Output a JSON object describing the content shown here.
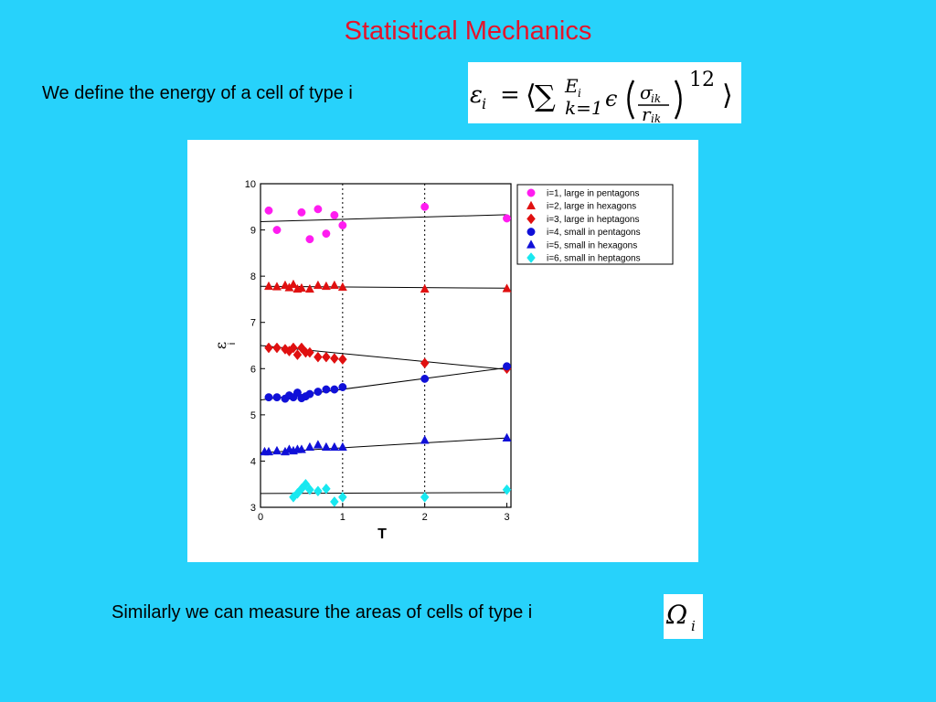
{
  "slide": {
    "title": "Statistical Mechanics",
    "line1": "We define the energy of a cell of type i",
    "line2": "Similarly we can measure the areas of cells of type i"
  },
  "formulas": {
    "energy": {
      "epsilon_i": "ε",
      "sub_i": "i",
      "eq": "=",
      "langle": "⟨",
      "sum": "∑",
      "upper_E": "E",
      "upper_sub": "i",
      "lower": "k=1",
      "epsilon": "ϵ",
      "sigma": "σ",
      "sigma_sub": "ik",
      "r": "r",
      "r_sub": "ik",
      "exponent": "12",
      "rangle": "⟩"
    },
    "area": {
      "symbol": "Ω",
      "sub": "i"
    }
  },
  "colors": {
    "background": "#27d2fb",
    "title": "#e4142a",
    "magenta": "#ff1cf0",
    "red": "#e01010",
    "blue": "#1010d8",
    "cyan": "#18e8f0"
  },
  "chart_data": {
    "type": "scatter",
    "xlabel": "T",
    "ylabel": "ε",
    "ylabel_sub": "i",
    "xlim": [
      0,
      3.05
    ],
    "ylim": [
      3,
      10
    ],
    "xticks": [
      "0",
      "1",
      "2",
      "3"
    ],
    "yticks": [
      "3",
      "4",
      "5",
      "6",
      "7",
      "8",
      "9",
      "10"
    ],
    "grid_x_at": [
      1,
      2
    ],
    "legend_position": "top-right",
    "series": [
      {
        "name": "i=1, large in pentagons",
        "color": "#ff1cf0",
        "marker": "circle",
        "points": [
          [
            0.1,
            9.42
          ],
          [
            0.2,
            9.0
          ],
          [
            0.5,
            9.38
          ],
          [
            0.6,
            8.8
          ],
          [
            0.7,
            9.45
          ],
          [
            0.8,
            8.92
          ],
          [
            0.9,
            9.32
          ],
          [
            1.0,
            9.1
          ],
          [
            2.0,
            9.5
          ],
          [
            3.0,
            9.25
          ]
        ],
        "fit": [
          [
            0.0,
            9.18
          ],
          [
            3.0,
            9.33
          ]
        ]
      },
      {
        "name": "i=2, large in hexagons",
        "color": "#e01010",
        "marker": "triangle",
        "points": [
          [
            0.1,
            7.78
          ],
          [
            0.2,
            7.77
          ],
          [
            0.3,
            7.8
          ],
          [
            0.35,
            7.75
          ],
          [
            0.4,
            7.82
          ],
          [
            0.45,
            7.72
          ],
          [
            0.5,
            7.74
          ],
          [
            0.6,
            7.72
          ],
          [
            0.7,
            7.8
          ],
          [
            0.8,
            7.78
          ],
          [
            0.9,
            7.8
          ],
          [
            1.0,
            7.76
          ],
          [
            2.0,
            7.72
          ],
          [
            3.0,
            7.73
          ]
        ],
        "fit": [
          [
            0.0,
            7.78
          ],
          [
            3.0,
            7.74
          ]
        ]
      },
      {
        "name": "i=3, large in heptagons",
        "color": "#e01010",
        "marker": "diamond",
        "points": [
          [
            0.1,
            6.45
          ],
          [
            0.2,
            6.45
          ],
          [
            0.3,
            6.42
          ],
          [
            0.35,
            6.38
          ],
          [
            0.4,
            6.45
          ],
          [
            0.45,
            6.3
          ],
          [
            0.5,
            6.45
          ],
          [
            0.55,
            6.35
          ],
          [
            0.6,
            6.35
          ],
          [
            0.7,
            6.25
          ],
          [
            0.8,
            6.25
          ],
          [
            0.9,
            6.22
          ],
          [
            1.0,
            6.2
          ],
          [
            2.0,
            6.12
          ],
          [
            3.0,
            6.0
          ]
        ],
        "fit": [
          [
            0.0,
            6.5
          ],
          [
            3.0,
            5.98
          ]
        ]
      },
      {
        "name": "i=4, small in pentagons",
        "color": "#1010d8",
        "marker": "circle",
        "points": [
          [
            0.1,
            5.38
          ],
          [
            0.2,
            5.38
          ],
          [
            0.3,
            5.35
          ],
          [
            0.35,
            5.42
          ],
          [
            0.4,
            5.38
          ],
          [
            0.45,
            5.48
          ],
          [
            0.5,
            5.36
          ],
          [
            0.55,
            5.4
          ],
          [
            0.6,
            5.45
          ],
          [
            0.7,
            5.5
          ],
          [
            0.8,
            5.55
          ],
          [
            0.9,
            5.55
          ],
          [
            1.0,
            5.6
          ],
          [
            2.0,
            5.78
          ],
          [
            3.0,
            6.05
          ]
        ],
        "fit": [
          [
            0.0,
            5.32
          ],
          [
            3.0,
            6.02
          ]
        ]
      },
      {
        "name": "i=5, small in hexagons",
        "color": "#1010d8",
        "marker": "triangle",
        "points": [
          [
            0.05,
            4.2
          ],
          [
            0.1,
            4.2
          ],
          [
            0.2,
            4.22
          ],
          [
            0.3,
            4.2
          ],
          [
            0.35,
            4.25
          ],
          [
            0.4,
            4.22
          ],
          [
            0.45,
            4.25
          ],
          [
            0.5,
            4.25
          ],
          [
            0.6,
            4.3
          ],
          [
            0.7,
            4.35
          ],
          [
            0.8,
            4.3
          ],
          [
            0.9,
            4.3
          ],
          [
            1.0,
            4.3
          ],
          [
            2.0,
            4.45
          ],
          [
            3.0,
            4.5
          ]
        ],
        "fit": [
          [
            0.0,
            4.18
          ],
          [
            3.0,
            4.5
          ]
        ]
      },
      {
        "name": "i=6, small in heptagons",
        "color": "#18e8f0",
        "marker": "diamond",
        "points": [
          [
            0.4,
            3.22
          ],
          [
            0.45,
            3.3
          ],
          [
            0.5,
            3.4
          ],
          [
            0.55,
            3.5
          ],
          [
            0.6,
            3.38
          ],
          [
            0.7,
            3.35
          ],
          [
            0.8,
            3.4
          ],
          [
            0.9,
            3.12
          ],
          [
            1.0,
            3.22
          ],
          [
            2.0,
            3.22
          ],
          [
            3.0,
            3.38
          ]
        ],
        "fit": [
          [
            0.0,
            3.3
          ],
          [
            3.0,
            3.32
          ]
        ]
      }
    ]
  }
}
